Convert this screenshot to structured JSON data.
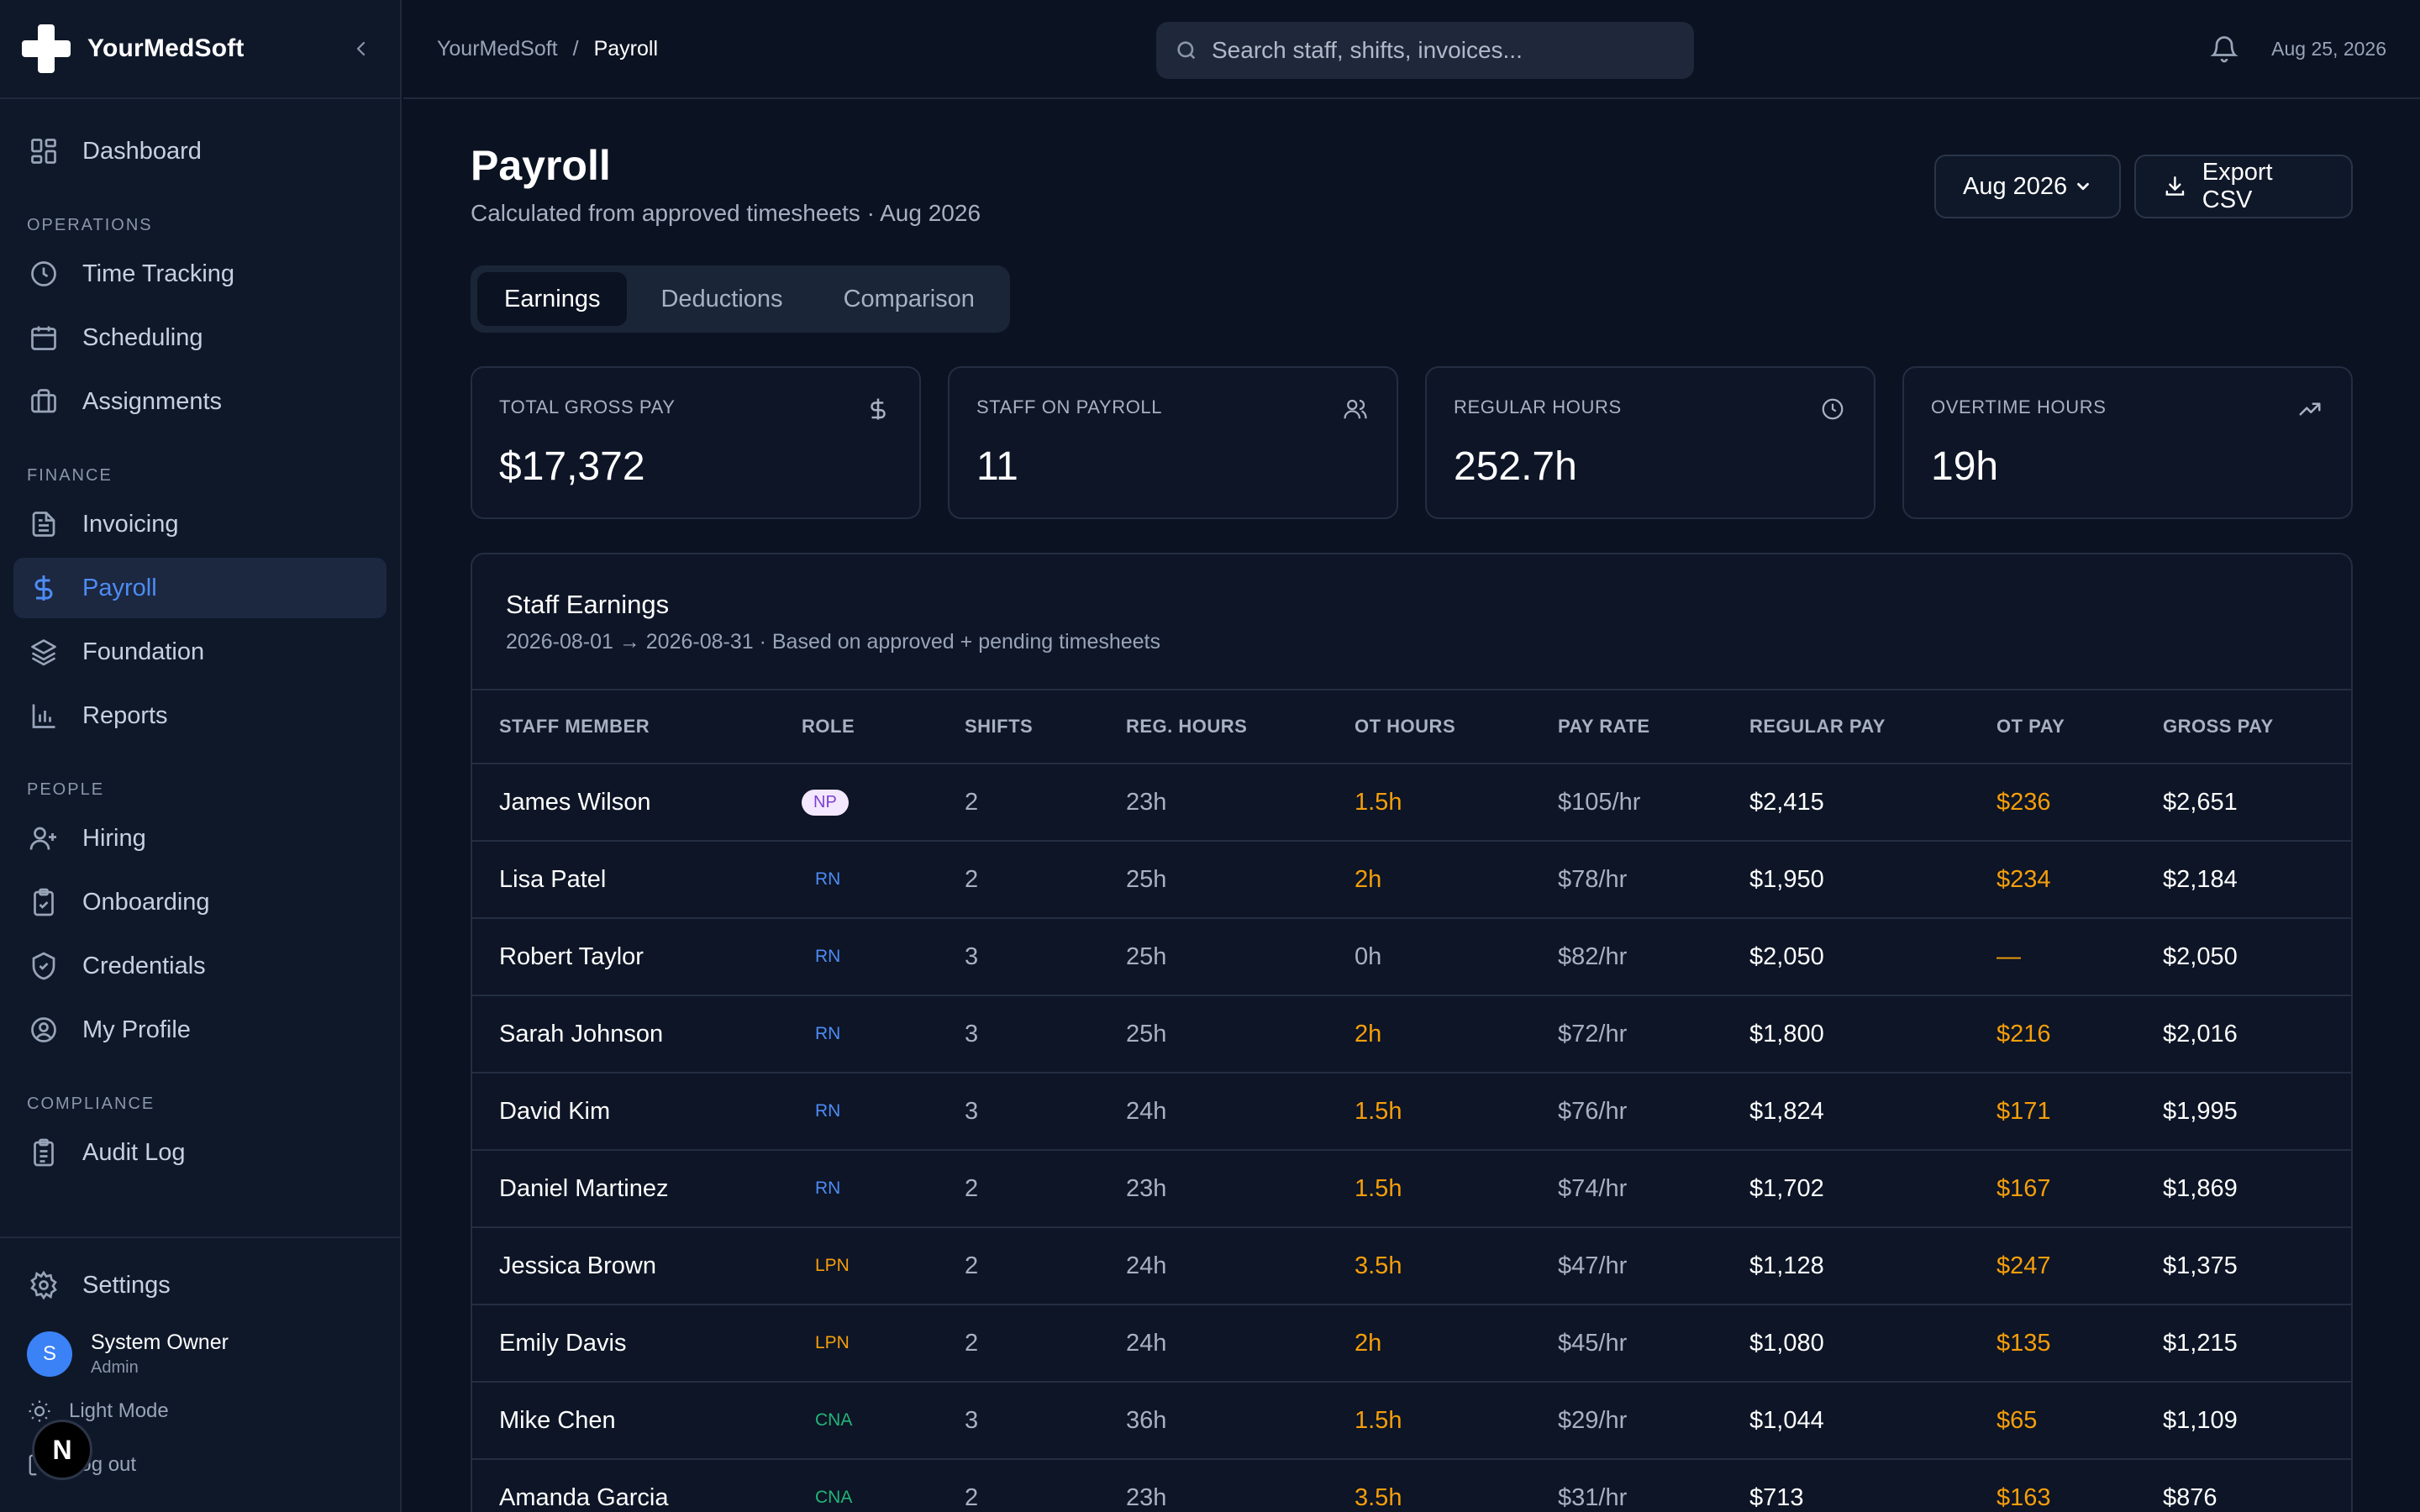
{
  "brand": {
    "name": "YourMedSoft"
  },
  "sidebar": {
    "dashboard": "Dashboard",
    "sections": {
      "operations": "OPERATIONS",
      "finance": "FINANCE",
      "people": "PEOPLE",
      "compliance": "COMPLIANCE"
    },
    "operations": [
      "Time Tracking",
      "Scheduling",
      "Assignments"
    ],
    "finance": [
      "Invoicing",
      "Payroll",
      "Foundation",
      "Reports"
    ],
    "people": [
      "Hiring",
      "Onboarding",
      "Credentials",
      "My Profile"
    ],
    "compliance": [
      "Audit Log"
    ],
    "settings": "Settings",
    "user": {
      "initial": "S",
      "name": "System Owner",
      "role": "Admin"
    },
    "light_mode": "Light Mode",
    "logout": "Log out",
    "badge": "N"
  },
  "topbar": {
    "breadcrumb": [
      "YourMedSoft",
      "/",
      "Payroll"
    ],
    "search_placeholder": "Search staff, shifts, invoices...",
    "date": "Aug 25, 2026"
  },
  "page": {
    "title": "Payroll",
    "subtitle": "Calculated from approved timesheets · Aug 2026",
    "period": "Aug 2026",
    "export": "Export CSV",
    "tabs": [
      "Earnings",
      "Deductions",
      "Comparison"
    ]
  },
  "stats": [
    {
      "label": "TOTAL GROSS PAY",
      "value": "$17,372",
      "icon": "dollar-icon"
    },
    {
      "label": "STAFF ON PAYROLL",
      "value": "11",
      "icon": "users-icon"
    },
    {
      "label": "REGULAR HOURS",
      "value": "252.7h",
      "icon": "clock-icon"
    },
    {
      "label": "OVERTIME HOURS",
      "value": "19h",
      "icon": "trending-up-icon"
    }
  ],
  "earnings": {
    "title": "Staff Earnings",
    "subtitle": "2026-08-01 → 2026-08-31 · Based on approved + pending timesheets",
    "columns": [
      "STAFF MEMBER",
      "ROLE",
      "SHIFTS",
      "REG. HOURS",
      "OT HOURS",
      "PAY RATE",
      "REGULAR PAY",
      "OT PAY",
      "GROSS PAY"
    ],
    "rows": [
      [
        "James Wilson",
        "NP",
        "2",
        "23h",
        "1.5h",
        "$105/hr",
        "$2,415",
        "$236",
        "$2,651"
      ],
      [
        "Lisa Patel",
        "RN",
        "2",
        "25h",
        "2h",
        "$78/hr",
        "$1,950",
        "$234",
        "$2,184"
      ],
      [
        "Robert Taylor",
        "RN",
        "3",
        "25h",
        "0h",
        "$82/hr",
        "$2,050",
        "—",
        "$2,050"
      ],
      [
        "Sarah Johnson",
        "RN",
        "3",
        "25h",
        "2h",
        "$72/hr",
        "$1,800",
        "$216",
        "$2,016"
      ],
      [
        "David Kim",
        "RN",
        "3",
        "24h",
        "1.5h",
        "$76/hr",
        "$1,824",
        "$171",
        "$1,995"
      ],
      [
        "Daniel Martinez",
        "RN",
        "2",
        "23h",
        "1.5h",
        "$74/hr",
        "$1,702",
        "$167",
        "$1,869"
      ],
      [
        "Jessica Brown",
        "LPN",
        "2",
        "24h",
        "3.5h",
        "$47/hr",
        "$1,128",
        "$247",
        "$1,375"
      ],
      [
        "Emily Davis",
        "LPN",
        "2",
        "24h",
        "2h",
        "$45/hr",
        "$1,080",
        "$135",
        "$1,215"
      ],
      [
        "Mike Chen",
        "CNA",
        "3",
        "36h",
        "1.5h",
        "$29/hr",
        "$1,044",
        "$65",
        "$1,109"
      ],
      [
        "Amanda Garcia",
        "CNA",
        "2",
        "23h",
        "3.5h",
        "$31/hr",
        "$713",
        "$163",
        "$876"
      ]
    ]
  },
  "colors": {
    "background": "#0b1221",
    "accent": "#4d8cf5",
    "overtime": "#f59e0b",
    "role_np": "#7e3fd1",
    "role_rn": "#4d8cf5",
    "role_lpn": "#f59e0b",
    "role_cna": "#22b578"
  }
}
